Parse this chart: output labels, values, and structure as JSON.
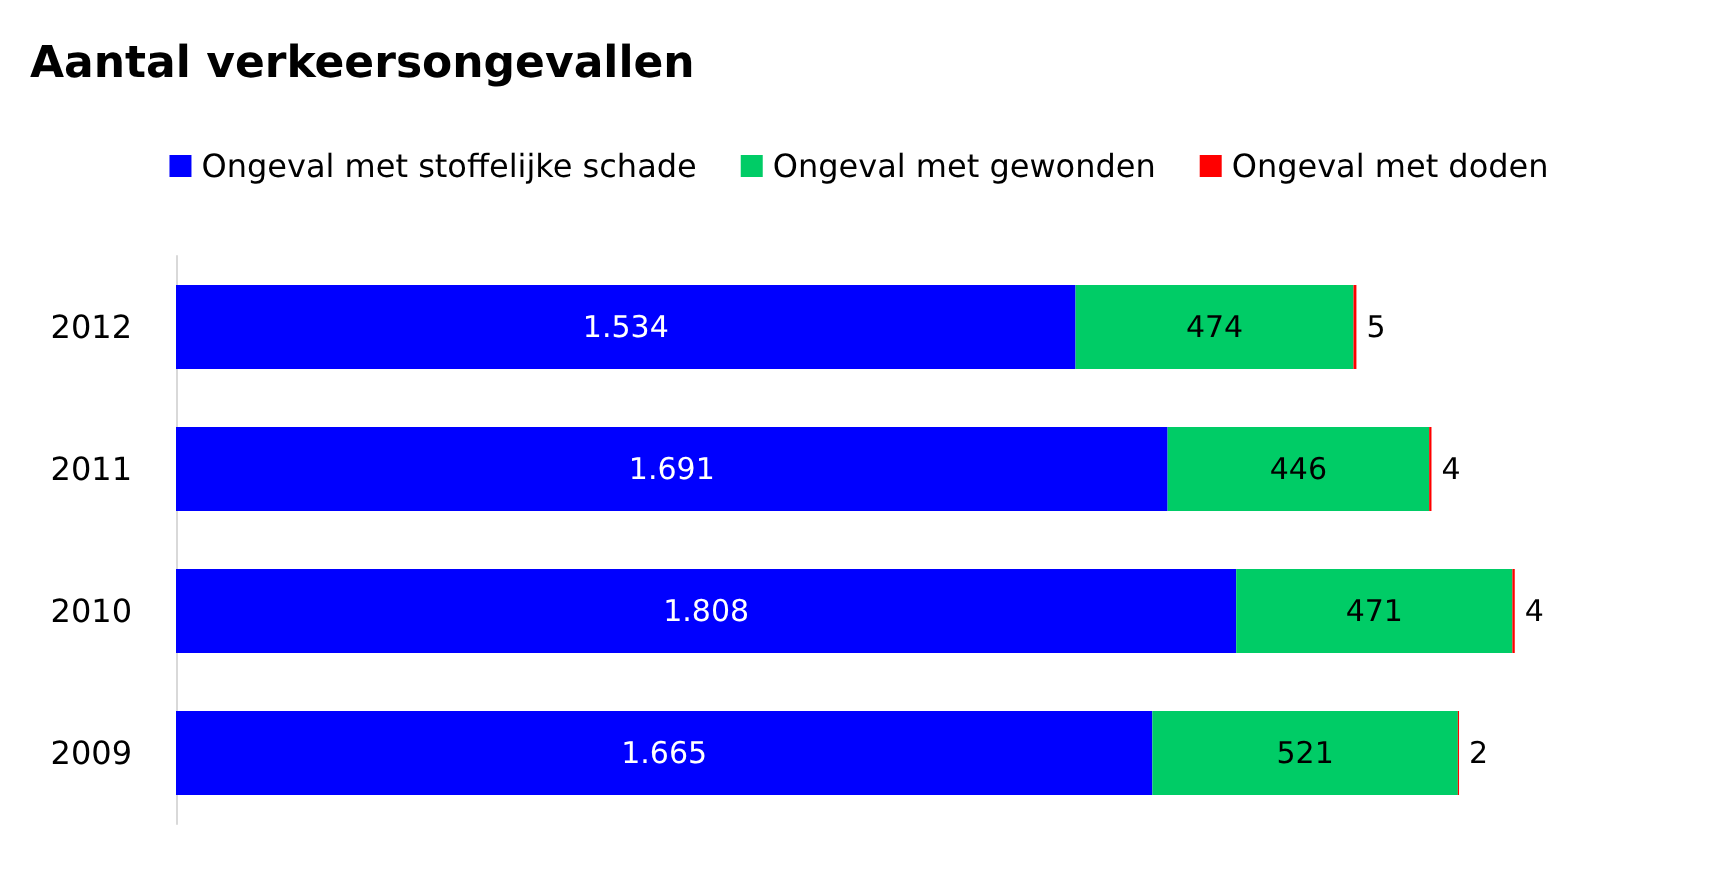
{
  "chart_data": {
    "type": "bar",
    "title": "Aantal verkeersongevallen",
    "orientation": "horizontal",
    "stacked": true,
    "legend": "top",
    "categories": [
      "2012",
      "2011",
      "2010",
      "2009"
    ],
    "series": [
      {
        "name": "Ongeval met stoffelijke schade",
        "color": "#0000ff",
        "values": [
          1534,
          1691,
          1808,
          1665
        ],
        "value_labels": [
          "1.534",
          "1.691",
          "1.808",
          "1.665"
        ]
      },
      {
        "name": "Ongeval met gewonden",
        "color": "#00cc66",
        "values": [
          474,
          446,
          471,
          521
        ],
        "value_labels": [
          "474",
          "446",
          "471",
          "521"
        ]
      },
      {
        "name": "Ongeval met doden",
        "color": "#ff0000",
        "values": [
          5,
          4,
          4,
          2
        ],
        "value_labels": [
          "5",
          "4",
          "4",
          "2"
        ]
      }
    ]
  }
}
